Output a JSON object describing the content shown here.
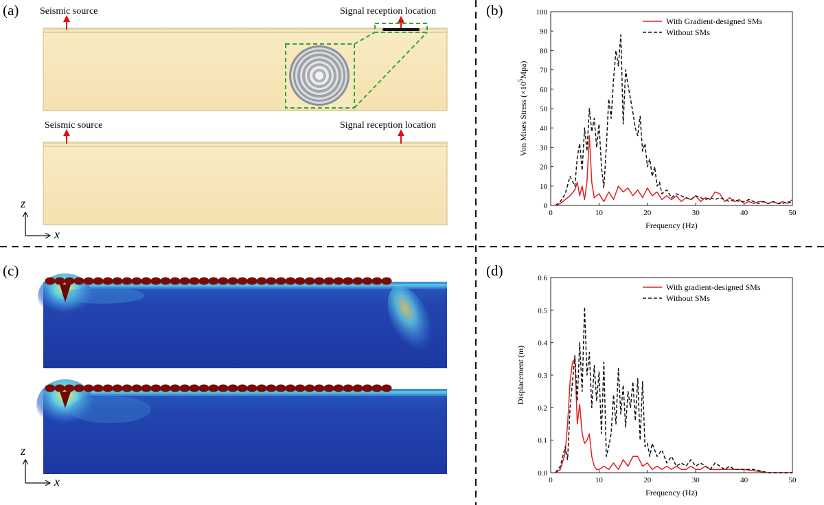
{
  "panels": {
    "a": {
      "label": "(a)",
      "top_beam": {
        "source_label": "Seismic source",
        "receiver_label": "Signal reception location"
      },
      "bottom_beam": {
        "source_label": "Seismic source",
        "receiver_label": "Signal reception location"
      }
    },
    "c": {
      "label": "(c)"
    },
    "axis_z": "z",
    "axis_x": "x"
  },
  "colors": {
    "soil": "#f7e5b6",
    "soil_edge": "#c9b98a",
    "with_sms": "#e02020",
    "without_sms": "#111111",
    "jet_blue": "#1b3aa8",
    "jet_dark_red": "#7a0a08",
    "inset_frame": "#2ea83a",
    "arrow": "#e01010",
    "divider": "#111111"
  },
  "chart_data": [
    {
      "panel": "(b)",
      "type": "line",
      "title": "",
      "xlabel": "Frequency (Hz)",
      "ylabel_main": "Von Mises Stress (×10",
      "ylabel_sup": "5",
      "ylabel_end": "Mpa)",
      "xlim": [
        0,
        50
      ],
      "ylim": [
        0,
        100
      ],
      "xticks": [
        "0",
        "10",
        "20",
        "30",
        "40",
        "50"
      ],
      "yticks": [
        "0",
        "10",
        "20",
        "30",
        "40",
        "50",
        "60",
        "70",
        "80",
        "90",
        "100"
      ],
      "legend_position": "top-right",
      "series": [
        {
          "name": "With Gradient-designed SMs",
          "style": "solid",
          "x": [
            1,
            2,
            3,
            4,
            5,
            5.5,
            6,
            6.5,
            7,
            7.5,
            8,
            8.5,
            9,
            10,
            11,
            12,
            13,
            14,
            15,
            16,
            17,
            18,
            19,
            20,
            21,
            22,
            23,
            24,
            25,
            26,
            27,
            28,
            29,
            30,
            31,
            32,
            33,
            34,
            35,
            36,
            37,
            38,
            39,
            40,
            41,
            42,
            43,
            44,
            45,
            46,
            47,
            48,
            49,
            50
          ],
          "y": [
            0,
            1,
            3,
            5,
            8,
            12,
            5,
            10,
            3,
            12,
            36,
            12,
            4,
            6,
            2,
            7,
            3,
            10,
            7,
            9,
            5,
            8,
            4,
            9,
            5,
            7,
            3,
            5,
            3,
            5,
            2,
            4,
            3,
            5,
            2,
            4,
            3,
            7,
            6,
            2,
            4,
            2,
            3,
            1,
            2,
            1,
            2,
            2,
            1,
            2,
            1,
            2,
            1,
            3
          ]
        },
        {
          "name": "Without SMs",
          "style": "dashed",
          "x": [
            1,
            2,
            3,
            4,
            5,
            5.5,
            6,
            6.5,
            7,
            7.5,
            8,
            8.5,
            9,
            9.5,
            10,
            10.5,
            11,
            11.5,
            12,
            12.5,
            13,
            13.5,
            14,
            14.5,
            15,
            15.5,
            16,
            16.5,
            17,
            17.5,
            18,
            18.5,
            19,
            19.5,
            20,
            20.5,
            21,
            21.5,
            22,
            22.5,
            23,
            24,
            25,
            26,
            27,
            28,
            29,
            30,
            31,
            32,
            33,
            34,
            35,
            36,
            37,
            38,
            39,
            40,
            41,
            42,
            43,
            44,
            45,
            46,
            47,
            48,
            49,
            50
          ],
          "y": [
            0,
            2,
            6,
            15,
            10,
            25,
            32,
            18,
            40,
            28,
            50,
            38,
            45,
            30,
            42,
            20,
            9,
            30,
            55,
            45,
            65,
            80,
            72,
            88,
            42,
            70,
            62,
            55,
            48,
            40,
            36,
            46,
            28,
            32,
            20,
            24,
            15,
            20,
            10,
            12,
            6,
            8,
            4,
            6,
            5,
            4,
            3,
            5,
            4,
            3,
            4,
            3,
            4,
            3,
            2,
            3,
            2,
            2,
            3,
            2,
            1,
            2,
            1,
            2,
            1,
            1,
            2,
            1
          ]
        }
      ]
    },
    {
      "panel": "(d)",
      "type": "line",
      "title": "",
      "xlabel": "Frequency (Hz)",
      "ylabel": "Displacement (m)",
      "xlim": [
        0,
        50
      ],
      "ylim": [
        0,
        0.6
      ],
      "xticks": [
        "0",
        "10",
        "20",
        "30",
        "40",
        "50"
      ],
      "yticks": [
        "0.0",
        "0.1",
        "0.2",
        "0.3",
        "0.4",
        "0.5",
        "0.6"
      ],
      "legend_position": "top-right",
      "series": [
        {
          "name": "With gradient-designed SMs",
          "style": "solid",
          "x": [
            1,
            2,
            3,
            3.5,
            4,
            4.5,
            5,
            5.5,
            6,
            6.5,
            7,
            7.5,
            8,
            8.5,
            9,
            9.5,
            10,
            11,
            12,
            13,
            14,
            15,
            16,
            17,
            18,
            19,
            20,
            21,
            22,
            23,
            24,
            25,
            26,
            27,
            28,
            29,
            30,
            31,
            32,
            33,
            34,
            35,
            36,
            37,
            38,
            39,
            40,
            45,
            50
          ],
          "y": [
            0,
            0.01,
            0.06,
            0.15,
            0.28,
            0.34,
            0.35,
            0.15,
            0.21,
            0.12,
            0.09,
            0.1,
            0.12,
            0.05,
            0.02,
            0.01,
            0.01,
            0.02,
            0.01,
            0.03,
            0.01,
            0.04,
            0.02,
            0.05,
            0.05,
            0.02,
            0.03,
            0.01,
            0.02,
            0.01,
            0.02,
            0.01,
            0.02,
            0.01,
            0.01,
            0.02,
            0.01,
            0.01,
            0.02,
            0.01,
            0.01,
            0.01,
            0.01,
            0.01,
            0.01,
            0.01,
            0.01,
            0.0,
            0.0
          ]
        },
        {
          "name": "Without SMs",
          "style": "dashed",
          "x": [
            1,
            2,
            3,
            3.5,
            4,
            4.5,
            5,
            5.5,
            6,
            6.5,
            7,
            7.5,
            8,
            8.5,
            9,
            9.5,
            10,
            10.5,
            11,
            11.5,
            12,
            12.5,
            13,
            13.5,
            14,
            14.5,
            15,
            15.5,
            16,
            16.5,
            17,
            17.5,
            18,
            18.5,
            19,
            19.5,
            20,
            20.5,
            21,
            22,
            23,
            24,
            25,
            26,
            27,
            28,
            29,
            30,
            31,
            32,
            33,
            34,
            35,
            36,
            37,
            38,
            39,
            40,
            42,
            45,
            50
          ],
          "y": [
            0,
            0.02,
            0.08,
            0.04,
            0.2,
            0.28,
            0.36,
            0.22,
            0.4,
            0.25,
            0.51,
            0.3,
            0.37,
            0.2,
            0.33,
            0.22,
            0.31,
            0.12,
            0.34,
            0.05,
            0.08,
            0.12,
            0.24,
            0.15,
            0.32,
            0.18,
            0.27,
            0.14,
            0.25,
            0.2,
            0.28,
            0.16,
            0.29,
            0.1,
            0.28,
            0.08,
            0.09,
            0.05,
            0.09,
            0.05,
            0.07,
            0.03,
            0.05,
            0.02,
            0.03,
            0.02,
            0.04,
            0.02,
            0.03,
            0.02,
            0.01,
            0.03,
            0.02,
            0.01,
            0.02,
            0.01,
            0.01,
            0.01,
            0.01,
            0.0,
            0.0
          ]
        }
      ]
    }
  ]
}
